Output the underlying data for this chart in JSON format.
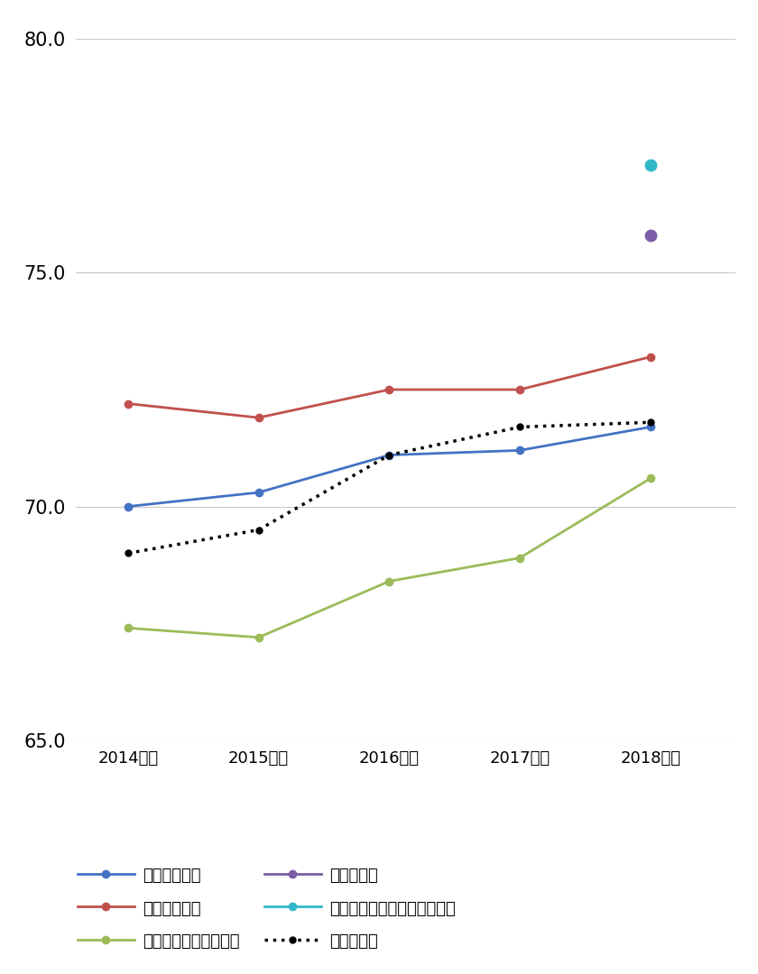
{
  "years": [
    2014,
    2015,
    2016,
    2017,
    2018
  ],
  "year_labels": [
    "2014年度",
    "2015年度",
    "2016年度",
    "2017年度",
    "2018年度"
  ],
  "series_order": [
    "生命保険平均",
    "損害保険平均",
    "クレジットカード平均",
    "映画館平均",
    "レンタカー／カーシェア平均",
    "全業種平均"
  ],
  "series": {
    "生命保険平均": {
      "values": [
        70.0,
        70.3,
        71.1,
        71.2,
        71.7
      ],
      "color": "#4472C4",
      "linestyle": "-",
      "marker": "o",
      "markersize": 6,
      "linewidth": 2.0,
      "has_line": true
    },
    "損害保険平均": {
      "values": [
        72.2,
        71.9,
        72.5,
        72.5,
        73.2
      ],
      "color": "#C0504D",
      "linestyle": "-",
      "marker": "o",
      "markersize": 6,
      "linewidth": 2.0,
      "has_line": true
    },
    "クレジットカード平均": {
      "values": [
        67.4,
        67.2,
        68.4,
        68.9,
        70.6
      ],
      "color": "#9BBB59",
      "linestyle": "-",
      "marker": "o",
      "markersize": 6,
      "linewidth": 2.0,
      "has_line": true
    },
    "映画館平均": {
      "values": [
        null,
        null,
        null,
        null,
        75.8
      ],
      "color": "#7B5EA7",
      "linestyle": "-",
      "marker": "o",
      "markersize": 9,
      "linewidth": 2.0,
      "has_line": false
    },
    "レンタカー／カーシェア平均": {
      "values": [
        null,
        null,
        null,
        null,
        77.3
      ],
      "color": "#31B7C8",
      "linestyle": "-",
      "marker": "o",
      "markersize": 9,
      "linewidth": 2.0,
      "has_line": false
    },
    "全業種平均": {
      "values": [
        69.0,
        69.5,
        71.1,
        71.7,
        71.8
      ],
      "color": "#000000",
      "linestyle": "dotted",
      "marker": "o",
      "markersize": 5,
      "linewidth": 2.5,
      "has_line": true
    }
  },
  "ylim": [
    65.0,
    80.0
  ],
  "yticks": [
    65.0,
    70.0,
    75.0,
    80.0
  ],
  "background_color": "#FFFFFF",
  "grid_color": "#C8C8C8",
  "legend_cols": 2,
  "legend_row_order": [
    [
      "生命保険平均",
      "損害保険平均"
    ],
    [
      "クレジットカード平均",
      "映画館平均"
    ],
    [
      "レンタカー／カーシェア平均",
      "全業種平均"
    ]
  ]
}
